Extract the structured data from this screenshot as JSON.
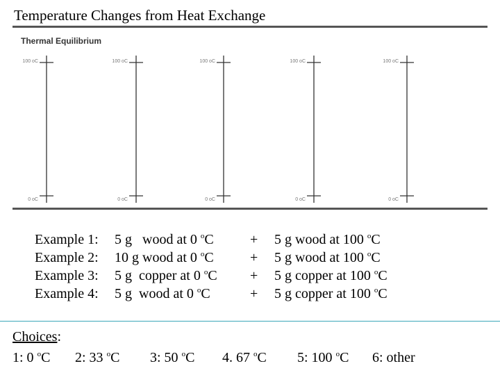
{
  "title": "Temperature Changes from Heat Exchange",
  "figure": {
    "title": "Thermal Equilibrium",
    "gauges": [
      {
        "top": "100 oC",
        "bottom": "0 oC"
      },
      {
        "top": "100 oC",
        "bottom": "0 oC"
      },
      {
        "top": "100 oC",
        "bottom": "0 oC"
      },
      {
        "top": "100 oC",
        "bottom": "0 oC"
      },
      {
        "top": "100 oC",
        "bottom": "0 oC"
      }
    ]
  },
  "examples": [
    {
      "label": "Example 1:",
      "left": [
        "5 g   wood at 0 ",
        "o",
        "C"
      ],
      "op": "+",
      "right": [
        "5 g wood at 100 ",
        "o",
        "C"
      ]
    },
    {
      "label": "Example 2:",
      "left": [
        "10 g wood at 0 ",
        "o",
        "C"
      ],
      "op": "+",
      "right": [
        "5 g wood at 100 ",
        "o",
        "C"
      ]
    },
    {
      "label": "Example 3:",
      "left": [
        "5 g  copper at 0 ",
        "o",
        "C"
      ],
      "op": "+",
      "right": [
        "5 g copper at 100 ",
        "o",
        "C"
      ]
    },
    {
      "label": "Example 4:",
      "left": [
        "5 g  wood at 0 ",
        "o",
        "C"
      ],
      "op": "+",
      "right": [
        "5 g copper at 100 ",
        "o",
        "C"
      ]
    }
  ],
  "choices": {
    "label": [
      "Choices",
      ":"
    ],
    "items": [
      [
        "1: 0 ",
        "o",
        "C"
      ],
      [
        "2: 33 ",
        "o",
        "C"
      ],
      [
        "3: 50 ",
        "o",
        "C"
      ],
      [
        "4. 67 ",
        "o",
        "C"
      ],
      [
        "5: 100 ",
        "o",
        "C"
      ],
      [
        "6: other"
      ]
    ]
  }
}
